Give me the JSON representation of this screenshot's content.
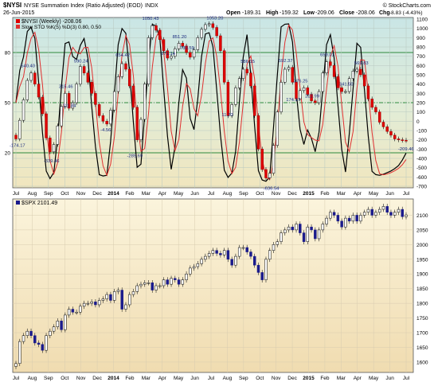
{
  "header": {
    "symbol": "$NYSI",
    "name": "NYSE Summation Index (Ratio Adjusted) (EOD)",
    "exchange": "INDX",
    "date": "26-Jun-2015",
    "open_label": "Open",
    "open": "-189.31",
    "high_label": "High",
    "high": "-159.32",
    "low_label": "Low",
    "low": "-209.06",
    "close_label": "Close",
    "close": "-208.06",
    "chg_label": "Chg",
    "chg": "-8.83 (-4.43%)",
    "credit": "© StockCharts.com",
    "colors": {
      "up": "#000000",
      "down": "#e00000",
      "fast": "#000000",
      "slow": "#e03030",
      "spx_up": "#000000",
      "spx_down": "#1a1a8c"
    }
  },
  "chart_data": [
    {
      "type": "candlestick",
      "title": "$NYSI (Weekly) -208.06",
      "legend": [
        {
          "name": "$NYSI (Weekly) -208.06",
          "color": "#e00000"
        },
        {
          "name": "Slow STO %K(5) %D(3) 0.80, 0.50",
          "color": "#e03030"
        }
      ],
      "x_labels": [
        "Jul",
        "Aug",
        "Sep",
        "Oct",
        "Nov",
        "Dec",
        "2014",
        "Feb",
        "Mar",
        "Apr",
        "May",
        "Jun",
        "Jul",
        "Aug",
        "Sep",
        "Oct",
        "Nov",
        "Dec",
        "2015",
        "Feb",
        "Mar",
        "Apr",
        "May",
        "Jun",
        "Jul"
      ],
      "y_right": {
        "min": -700,
        "max": 1100,
        "ticks": [
          1100,
          1000,
          900,
          800,
          700,
          600,
          500,
          400,
          300,
          200,
          100,
          0,
          -100,
          -200,
          -300,
          -400,
          -500,
          -600,
          -700
        ]
      },
      "y_left_ticks": [
        80,
        50,
        20
      ],
      "y_left_range": [
        0,
        100
      ],
      "reference_lines": [
        80,
        50,
        20
      ],
      "annotations": [
        {
          "label": "-174.17",
          "value": -174.17,
          "week": 0
        },
        {
          "label": "540.40",
          "value": 540.4,
          "week": 3
        },
        {
          "label": "-339.46",
          "value": -339.46,
          "week": 9
        },
        {
          "label": "315.46",
          "value": 315.46,
          "week": 13
        },
        {
          "label": "111.84",
          "value": 111.84,
          "week": 14
        },
        {
          "label": "590.24",
          "value": 590.24,
          "week": 17
        },
        {
          "label": "-4.56",
          "value": -4.56,
          "week": 24
        },
        {
          "label": "654.42",
          "value": 654.42,
          "week": 28
        },
        {
          "label": "-285.69",
          "value": -285.69,
          "week": 31
        },
        {
          "label": "1050.43",
          "value": 1050.43,
          "week": 35
        },
        {
          "label": "671.14",
          "value": 671.14,
          "week": 40
        },
        {
          "label": "851.20",
          "value": 851.2,
          "week": 43
        },
        {
          "label": "730.59",
          "value": 730.59,
          "week": 45
        },
        {
          "label": "1053.20",
          "value": 1053.2,
          "week": 52
        },
        {
          "label": "11.20",
          "value": 11.2,
          "week": 56
        },
        {
          "label": "586.15",
          "value": 586.15,
          "week": 61
        },
        {
          "label": "-636.54",
          "value": -636.54,
          "week": 67
        },
        {
          "label": "592.37",
          "value": 592.37,
          "week": 71
        },
        {
          "label": "174.17",
          "value": 174.17,
          "week": 73
        },
        {
          "label": "376.25",
          "value": 376.25,
          "week": 75
        },
        {
          "label": "212.99",
          "value": 212.99,
          "week": 78
        },
        {
          "label": "659.01",
          "value": 659.01,
          "week": 82
        },
        {
          "label": "341.50",
          "value": 341.5,
          "week": 87
        },
        {
          "label": "569.83",
          "value": 569.83,
          "week": 91
        },
        {
          "label": "-209.46",
          "value": -209.46,
          "week": 103
        }
      ],
      "close": [
        -190,
        10,
        230,
        440,
        520,
        400,
        260,
        80,
        -180,
        -330,
        -250,
        -50,
        160,
        300,
        140,
        200,
        400,
        590,
        520,
        420,
        300,
        180,
        60,
        0,
        -30,
        120,
        320,
        480,
        620,
        560,
        380,
        150,
        -200,
        20,
        400,
        900,
        1030,
        980,
        880,
        760,
        680,
        700,
        780,
        840,
        810,
        740,
        690,
        770,
        900,
        990,
        1040,
        1050,
        1010,
        920,
        760,
        420,
        60,
        180,
        360,
        460,
        560,
        520,
        380,
        60,
        -300,
        -520,
        -610,
        -560,
        -260,
        100,
        420,
        560,
        580,
        420,
        240,
        330,
        360,
        290,
        220,
        200,
        320,
        520,
        640,
        600,
        480,
        360,
        320,
        320,
        460,
        540,
        560,
        500,
        380,
        240,
        150,
        100,
        -10,
        -60,
        -110,
        -150,
        -190,
        -200,
        -205,
        -208
      ]
    },
    {
      "type": "candlestick",
      "title": "$SPX 2101.49",
      "x_labels": [
        "Jul",
        "Aug",
        "Sep",
        "Oct",
        "Nov",
        "Dec",
        "2014",
        "Feb",
        "Mar",
        "Apr",
        "May",
        "Jun",
        "Jul",
        "Aug",
        "Sep",
        "Oct",
        "Nov",
        "Dec",
        "2015",
        "Feb",
        "Mar",
        "Apr",
        "May",
        "Jun",
        "Jul"
      ],
      "y_right": {
        "min": 1570,
        "max": 2150,
        "ticks": [
          2100,
          2050,
          2000,
          1950,
          1900,
          1850,
          1800,
          1750,
          1700,
          1650,
          1600
        ]
      },
      "close": [
        1595,
        1670,
        1690,
        1705,
        1690,
        1665,
        1660,
        1640,
        1690,
        1705,
        1720,
        1740,
        1710,
        1760,
        1780,
        1770,
        1770,
        1790,
        1800,
        1800,
        1805,
        1795,
        1810,
        1815,
        1830,
        1810,
        1840,
        1845,
        1780,
        1795,
        1830,
        1840,
        1860,
        1865,
        1870,
        1870,
        1845,
        1860,
        1860,
        1880,
        1865,
        1885,
        1880,
        1865,
        1880,
        1900,
        1920,
        1925,
        1935,
        1950,
        1960,
        1970,
        1980,
        1970,
        1965,
        1980,
        1950,
        1930,
        1960,
        1990,
        1990,
        1975,
        1960,
        1930,
        1905,
        1880,
        1950,
        1980,
        2000,
        2010,
        2040,
        2050,
        2060,
        2050,
        2070,
        2040,
        2010,
        2060,
        2050,
        2020,
        2050,
        2070,
        2090,
        2110,
        2100,
        2080,
        2060,
        2090,
        2080,
        2100,
        2080,
        2100,
        2110,
        2120,
        2100,
        2110,
        2120,
        2130,
        2110,
        2100,
        2110,
        2120,
        2095,
        2101
      ]
    }
  ]
}
